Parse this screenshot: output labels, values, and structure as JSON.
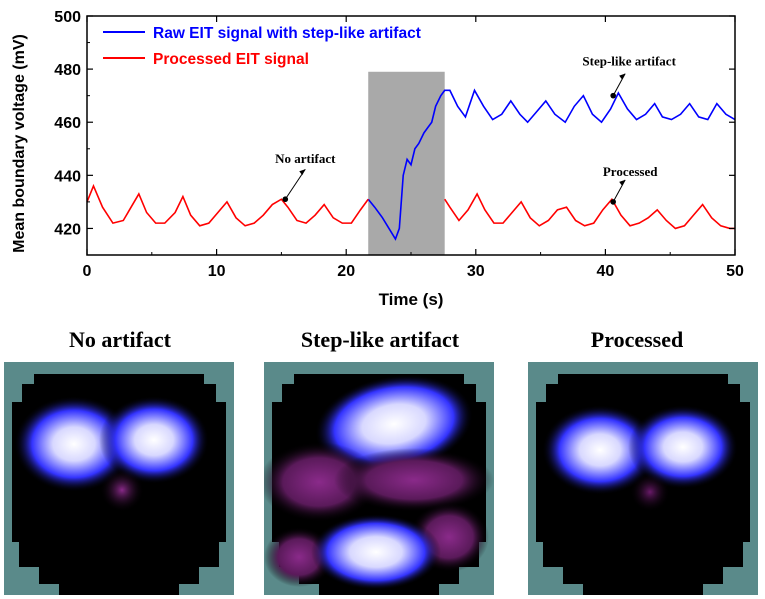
{
  "colors": {
    "raw": "#0000ff",
    "processed": "#ff0000",
    "artifact_shade": "#a9a9a9",
    "panel_bg": "#5a8a8a"
  },
  "chart_data": {
    "type": "line",
    "xlabel": "Time (s)",
    "ylabel": "Mean boundary voltage (mV)",
    "xlim": [
      0,
      50
    ],
    "ylim": [
      410,
      500
    ],
    "xticks": [
      0,
      10,
      20,
      30,
      40,
      50
    ],
    "yticks": [
      420,
      440,
      460,
      480,
      500
    ],
    "shaded_region": {
      "x_start": 21.7,
      "x_end": 27.6
    },
    "series": [
      {
        "name": "Raw EIT signal with step-like artifact",
        "color": "#0000ff",
        "x": [
          21.7,
          22.2,
          22.8,
          23.3,
          23.8,
          24.1,
          24.4,
          24.7,
          25.0,
          25.3,
          25.6,
          26.0,
          26.3,
          26.6,
          26.9,
          27.3,
          27.6,
          28.0,
          28.6,
          29.2,
          29.9,
          30.6,
          31.3,
          32.0,
          32.7,
          33.4,
          34.0,
          34.7,
          35.4,
          36.1,
          36.9,
          37.6,
          38.3,
          39.0,
          39.7,
          40.4,
          41.0,
          41.7,
          42.4,
          43.1,
          43.8,
          44.4,
          45.1,
          45.8,
          46.5,
          47.2,
          47.9,
          48.6,
          49.3,
          50.0
        ],
        "y": [
          431,
          428,
          424,
          420,
          416,
          420,
          440,
          446,
          444,
          450,
          452,
          456,
          458,
          460,
          466,
          470,
          472,
          472,
          466,
          462,
          472,
          466,
          461,
          463,
          468,
          463,
          460,
          464,
          468,
          463,
          460,
          466,
          470,
          463,
          460,
          465,
          471,
          465,
          461,
          463,
          467,
          462,
          461,
          463,
          467,
          462,
          461,
          467,
          463,
          461
        ]
      },
      {
        "name": "Processed EIT signal",
        "color": "#ff0000",
        "x": [
          0,
          0.5,
          1.2,
          2.0,
          2.8,
          3.4,
          4.0,
          4.6,
          5.3,
          6.0,
          6.8,
          7.4,
          8.0,
          8.7,
          9.4,
          10.1,
          10.8,
          11.5,
          12.2,
          12.9,
          13.6,
          14.3,
          15.0,
          15.5,
          16.2,
          16.9,
          17.6,
          18.3,
          19.0,
          19.7,
          20.4,
          21.1,
          21.7,
          27.6,
          28.0,
          28.7,
          29.4,
          30.1,
          30.7,
          31.4,
          32.1,
          32.8,
          33.5,
          34.2,
          34.9,
          35.6,
          36.3,
          37.0,
          37.7,
          38.4,
          39.1,
          39.8,
          40.5,
          41.2,
          41.9,
          42.6,
          43.3,
          44.0,
          44.7,
          45.4,
          46.1,
          46.8,
          47.5,
          48.2,
          48.9,
          49.6,
          50.0
        ],
        "y": [
          430,
          436,
          428,
          422,
          423,
          428,
          433,
          426,
          422,
          422,
          426,
          432,
          425,
          421,
          422,
          426,
          430,
          424,
          421,
          422,
          425,
          429,
          431,
          428,
          423,
          422,
          425,
          429,
          424,
          422,
          422,
          427,
          431,
          431,
          428,
          423,
          427,
          433,
          427,
          422,
          422,
          426,
          430,
          424,
          421,
          423,
          427,
          428,
          423,
          421,
          422,
          427,
          431,
          425,
          421,
          422,
          424,
          427,
          423,
          420,
          421,
          425,
          429,
          424,
          421,
          420,
          420
        ]
      }
    ],
    "annotations": [
      {
        "text": "No artifact",
        "x": 15.3,
        "y": 431
      },
      {
        "text": "Step-like artifact",
        "x": 40.6,
        "y": 470
      },
      {
        "text": "Processed",
        "x": 40.6,
        "y": 430
      }
    ],
    "legend": {
      "position": "top-left",
      "entries": [
        "Raw EIT signal with step-like artifact",
        "Processed EIT signal"
      ]
    }
  },
  "panels": [
    {
      "title": "No artifact"
    },
    {
      "title": "Step-like artifact"
    },
    {
      "title": "Processed"
    }
  ]
}
